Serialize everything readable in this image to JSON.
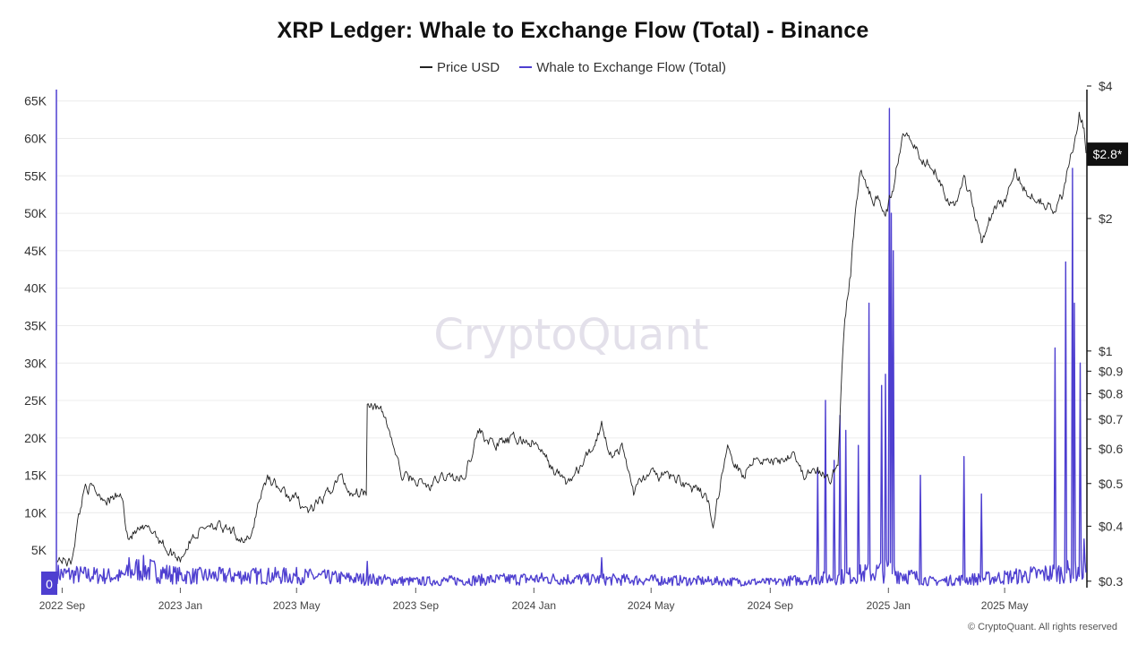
{
  "colors": {
    "price": "#222222",
    "flow": "#4e3fd0",
    "grid": "#ececec",
    "watermark": "#e3e0ea"
  },
  "watermark": "CryptoQuant",
  "copyright": "© CryptoQuant. All rights reserved",
  "chart_data": {
    "type": "line",
    "title": "XRP Ledger: Whale to Exchange Flow (Total) - Binance",
    "legend": {
      "placement": "top-center",
      "entries": [
        "Price USD",
        "Whale to Exchange Flow (Total)"
      ]
    },
    "grid": "horizontal",
    "x_axis": {
      "ticks": [
        "2022 Sep",
        "2023 Jan",
        "2023 May",
        "2023 Sep",
        "2024 Jan",
        "2024 May",
        "2024 Sep",
        "2025 Jan",
        "2025 May"
      ],
      "tick_dates": [
        "2022-09-01",
        "2023-01-01",
        "2023-05-01",
        "2023-09-01",
        "2024-01-01",
        "2024-05-01",
        "2024-09-01",
        "2025-01-01",
        "2025-05-01"
      ],
      "range": [
        "2022-08-27",
        "2025-07-24"
      ]
    },
    "y_left": {
      "ticks": [
        "0",
        "5K",
        "10K",
        "15K",
        "20K",
        "25K",
        "30K",
        "35K",
        "40K",
        "45K",
        "50K",
        "55K",
        "60K",
        "65K"
      ],
      "tick_values": [
        0,
        5000,
        10000,
        15000,
        20000,
        25000,
        30000,
        35000,
        40000,
        45000,
        50000,
        55000,
        60000,
        65000
      ],
      "range": [
        0,
        67000
      ]
    },
    "y_right": {
      "scale": "log",
      "ticks": [
        "$0.3",
        "$0.4",
        "$0.5",
        "$0.6",
        "$0.7",
        "$0.8",
        "$0.9",
        "$1",
        "$2",
        "$4"
      ],
      "tick_values": [
        0.3,
        0.4,
        0.5,
        0.6,
        0.7,
        0.8,
        0.9,
        1,
        2,
        4
      ],
      "range": [
        0.29,
        4
      ],
      "current_price_label": "$2.8*",
      "current_price": 2.8
    },
    "series": [
      {
        "name": "Price USD",
        "axis": "right",
        "points": [
          [
            "2022-08-27",
            0.34
          ],
          [
            "2022-09-10",
            0.33
          ],
          [
            "2022-09-20",
            0.44
          ],
          [
            "2022-09-25",
            0.5
          ],
          [
            "2022-10-05",
            0.48
          ],
          [
            "2022-10-20",
            0.46
          ],
          [
            "2022-11-01",
            0.47
          ],
          [
            "2022-11-08",
            0.38
          ],
          [
            "2022-11-20",
            0.39
          ],
          [
            "2022-12-05",
            0.39
          ],
          [
            "2022-12-20",
            0.35
          ],
          [
            "2023-01-01",
            0.34
          ],
          [
            "2023-01-15",
            0.38
          ],
          [
            "2023-02-01",
            0.41
          ],
          [
            "2023-02-15",
            0.39
          ],
          [
            "2023-03-01",
            0.38
          ],
          [
            "2023-03-15",
            0.37
          ],
          [
            "2023-03-22",
            0.45
          ],
          [
            "2023-04-01",
            0.52
          ],
          [
            "2023-04-20",
            0.47
          ],
          [
            "2023-05-01",
            0.46
          ],
          [
            "2023-05-15",
            0.43
          ],
          [
            "2023-06-01",
            0.47
          ],
          [
            "2023-06-15",
            0.52
          ],
          [
            "2023-06-25",
            0.48
          ],
          [
            "2023-07-12",
            0.48
          ],
          [
            "2023-07-13",
            0.78
          ],
          [
            "2023-07-20",
            0.76
          ],
          [
            "2023-08-01",
            0.7
          ],
          [
            "2023-08-17",
            0.52
          ],
          [
            "2023-09-01",
            0.51
          ],
          [
            "2023-09-15",
            0.49
          ],
          [
            "2023-10-01",
            0.52
          ],
          [
            "2023-10-20",
            0.51
          ],
          [
            "2023-11-05",
            0.66
          ],
          [
            "2023-11-20",
            0.61
          ],
          [
            "2023-12-01",
            0.62
          ],
          [
            "2023-12-15",
            0.63
          ],
          [
            "2024-01-01",
            0.62
          ],
          [
            "2024-01-20",
            0.54
          ],
          [
            "2024-02-05",
            0.5
          ],
          [
            "2024-02-20",
            0.55
          ],
          [
            "2024-03-01",
            0.6
          ],
          [
            "2024-03-11",
            0.68
          ],
          [
            "2024-03-20",
            0.59
          ],
          [
            "2024-04-01",
            0.6
          ],
          [
            "2024-04-13",
            0.48
          ],
          [
            "2024-04-25",
            0.52
          ],
          [
            "2024-05-15",
            0.52
          ],
          [
            "2024-06-01",
            0.51
          ],
          [
            "2024-06-15",
            0.48
          ],
          [
            "2024-06-25",
            0.47
          ],
          [
            "2024-07-05",
            0.41
          ],
          [
            "2024-07-15",
            0.55
          ],
          [
            "2024-07-20",
            0.6
          ],
          [
            "2024-08-05",
            0.52
          ],
          [
            "2024-08-15",
            0.58
          ],
          [
            "2024-09-01",
            0.56
          ],
          [
            "2024-09-15",
            0.57
          ],
          [
            "2024-09-25",
            0.6
          ],
          [
            "2024-10-05",
            0.52
          ],
          [
            "2024-10-20",
            0.53
          ],
          [
            "2024-11-01",
            0.51
          ],
          [
            "2024-11-10",
            0.55
          ],
          [
            "2024-11-16",
            1.1
          ],
          [
            "2024-11-23",
            1.5
          ],
          [
            "2024-12-03",
            2.6
          ],
          [
            "2024-12-10",
            2.3
          ],
          [
            "2024-12-20",
            2.2
          ],
          [
            "2024-12-31",
            2.1
          ],
          [
            "2025-01-07",
            2.4
          ],
          [
            "2025-01-16",
            3.2
          ],
          [
            "2025-01-25",
            3.1
          ],
          [
            "2025-02-03",
            2.7
          ],
          [
            "2025-02-15",
            2.7
          ],
          [
            "2025-03-01",
            2.3
          ],
          [
            "2025-03-10",
            2.1
          ],
          [
            "2025-03-20",
            2.5
          ],
          [
            "2025-04-07",
            1.8
          ],
          [
            "2025-04-20",
            2.1
          ],
          [
            "2025-05-01",
            2.2
          ],
          [
            "2025-05-12",
            2.5
          ],
          [
            "2025-05-25",
            2.3
          ],
          [
            "2025-06-10",
            2.2
          ],
          [
            "2025-06-22",
            2.05
          ],
          [
            "2025-07-01",
            2.3
          ],
          [
            "2025-07-10",
            2.9
          ],
          [
            "2025-07-17",
            3.5
          ],
          [
            "2025-07-22",
            3.2
          ],
          [
            "2025-07-24",
            2.8
          ]
        ]
      },
      {
        "name": "Whale to Exchange Flow (Total)",
        "axis": "left",
        "baseline": [
          [
            "2022-08-27",
            2000
          ],
          [
            "2022-11-01",
            1600
          ],
          [
            "2022-11-20",
            2800
          ],
          [
            "2023-01-01",
            1700
          ],
          [
            "2023-05-01",
            1700
          ],
          [
            "2023-09-01",
            900
          ],
          [
            "2024-01-01",
            1300
          ],
          [
            "2024-05-01",
            1100
          ],
          [
            "2024-09-01",
            800
          ],
          [
            "2024-11-10",
            1500
          ],
          [
            "2025-01-01",
            2500
          ],
          [
            "2025-02-15",
            900
          ],
          [
            "2025-05-01",
            1500
          ],
          [
            "2025-07-24",
            2500
          ]
        ],
        "spikes": [
          [
            "2022-11-09",
            4000
          ],
          [
            "2023-07-13",
            3500
          ],
          [
            "2024-03-11",
            4000
          ],
          [
            "2024-10-20",
            16000
          ],
          [
            "2024-10-28",
            25000
          ],
          [
            "2024-11-06",
            17000
          ],
          [
            "2024-11-12",
            23000
          ],
          [
            "2024-11-18",
            21000
          ],
          [
            "2024-12-01",
            19000
          ],
          [
            "2024-12-12",
            38000
          ],
          [
            "2024-12-25",
            27000
          ],
          [
            "2024-12-29",
            28500
          ],
          [
            "2025-01-02",
            64000
          ],
          [
            "2025-01-04",
            50000
          ],
          [
            "2025-01-06",
            45000
          ],
          [
            "2025-02-03",
            15000
          ],
          [
            "2025-03-20",
            17500
          ],
          [
            "2025-04-07",
            12500
          ],
          [
            "2025-06-22",
            32000
          ],
          [
            "2025-07-03",
            43500
          ],
          [
            "2025-07-10",
            56000
          ],
          [
            "2025-07-12",
            38000
          ],
          [
            "2025-07-18",
            30000
          ],
          [
            "2025-07-22",
            6500
          ]
        ]
      }
    ]
  }
}
